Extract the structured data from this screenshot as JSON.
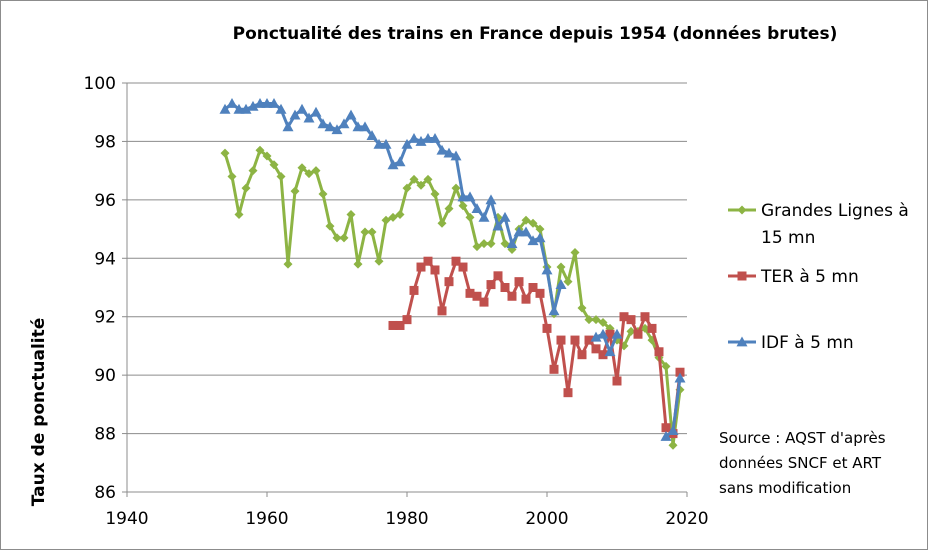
{
  "chart_data": {
    "type": "line",
    "title": "Ponctualité des trains en France depuis 1954 (données brutes)",
    "ylabel": "Taux de ponctualité",
    "xlabel": "",
    "xlim": [
      1940,
      2020
    ],
    "ylim": [
      86,
      100
    ],
    "x_ticks": [
      "1940",
      "1960",
      "1980",
      "2000",
      "2020"
    ],
    "y_ticks": [
      "86",
      "88",
      "90",
      "92",
      "94",
      "96",
      "98",
      "100"
    ],
    "grid": "horizontal",
    "legend_position": "right",
    "series": [
      {
        "name": "Grandes Lignes à 15 mn",
        "name_lines": [
          "Grandes Lignes à",
          "15 mn"
        ],
        "color": "#8DB444",
        "marker": "diamond",
        "x": [
          1954,
          1955,
          1956,
          1957,
          1958,
          1959,
          1960,
          1961,
          1962,
          1963,
          1964,
          1965,
          1966,
          1967,
          1968,
          1969,
          1970,
          1971,
          1972,
          1973,
          1974,
          1975,
          1976,
          1977,
          1978,
          1979,
          1980,
          1981,
          1982,
          1983,
          1984,
          1985,
          1986,
          1987,
          1988,
          1989,
          1990,
          1991,
          1992,
          1993,
          1994,
          1995,
          1996,
          1997,
          1998,
          1999,
          2000,
          2001,
          2002,
          2003,
          2004,
          2005,
          2006,
          2007,
          2008,
          2009,
          2010,
          2011,
          2012,
          2013,
          2014,
          2015,
          2016,
          2017,
          2018,
          2019
        ],
        "y": [
          97.6,
          96.8,
          95.5,
          96.4,
          97.0,
          97.7,
          97.5,
          97.2,
          96.8,
          93.8,
          96.3,
          97.1,
          96.9,
          97.0,
          96.2,
          95.1,
          94.7,
          94.7,
          95.5,
          93.8,
          94.9,
          94.9,
          93.9,
          95.3,
          95.4,
          95.5,
          96.4,
          96.7,
          96.5,
          96.7,
          96.2,
          95.2,
          95.7,
          96.4,
          95.8,
          95.4,
          94.4,
          94.5,
          94.5,
          95.4,
          94.5,
          94.3,
          95.0,
          95.3,
          95.2,
          95.0,
          93.7,
          92.1,
          93.7,
          93.2,
          94.2,
          92.3,
          91.9,
          91.9,
          91.8,
          91.6,
          91.2,
          91.0,
          91.5,
          91.5,
          91.6,
          91.2,
          90.6,
          90.3,
          87.6,
          89.5
        ]
      },
      {
        "name": "TER à 5 mn",
        "name_lines": [
          "TER à 5 mn"
        ],
        "color": "#C0504D",
        "marker": "square",
        "x": [
          1978,
          1979,
          1980,
          1981,
          1982,
          1983,
          1984,
          1985,
          1986,
          1987,
          1988,
          1989,
          1990,
          1991,
          1992,
          1993,
          1994,
          1995,
          1996,
          1997,
          1998,
          1999,
          2000,
          2001,
          2002,
          2003,
          2004,
          2005,
          2006,
          2007,
          2008,
          2009,
          2010,
          2011,
          2012,
          2013,
          2014,
          2015,
          2016,
          2017,
          2018,
          2019
        ],
        "y": [
          91.7,
          91.7,
          91.9,
          92.9,
          93.7,
          93.9,
          93.6,
          92.2,
          93.2,
          93.9,
          93.7,
          92.8,
          92.7,
          92.5,
          93.1,
          93.4,
          93.0,
          92.7,
          93.2,
          92.6,
          93.0,
          92.8,
          91.6,
          90.2,
          91.2,
          89.4,
          91.2,
          90.7,
          91.2,
          90.9,
          90.7,
          91.4,
          89.8,
          92.0,
          91.9,
          91.4,
          92.0,
          91.6,
          90.8,
          88.2,
          88.0,
          90.1
        ]
      },
      {
        "name": "IDF à 5 mn",
        "name_lines": [
          "IDF à 5 mn"
        ],
        "color": "#4F81BD",
        "marker": "triangle",
        "x": [
          1954,
          1955,
          1956,
          1957,
          1958,
          1959,
          1960,
          1961,
          1962,
          1963,
          1964,
          1965,
          1966,
          1967,
          1968,
          1969,
          1970,
          1971,
          1972,
          1973,
          1974,
          1975,
          1976,
          1977,
          1978,
          1979,
          1980,
          1981,
          1982,
          1983,
          1984,
          1985,
          1986,
          1987,
          1988,
          1989,
          1990,
          1991,
          1992,
          1993,
          1994,
          1995,
          1996,
          1997,
          1998,
          1999,
          2000,
          2001,
          2002,
          2003,
          2004,
          2005,
          2006,
          2007,
          2008,
          2009,
          2010,
          2011,
          2012,
          2013,
          2014,
          2015,
          2016,
          2017,
          2018,
          2019
        ],
        "y": [
          99.1,
          99.3,
          99.1,
          99.1,
          99.2,
          99.3,
          99.3,
          99.3,
          99.1,
          98.5,
          98.9,
          99.1,
          98.8,
          99.0,
          98.6,
          98.5,
          98.4,
          98.6,
          98.9,
          98.5,
          98.5,
          98.2,
          97.9,
          97.9,
          97.2,
          97.3,
          97.9,
          98.1,
          98.0,
          98.1,
          98.1,
          97.7,
          97.6,
          97.5,
          96.1,
          96.1,
          95.7,
          95.4,
          96.0,
          95.1,
          95.4,
          94.5,
          94.9,
          94.9,
          94.6,
          94.7,
          93.6,
          92.2,
          93.1,
          null,
          null,
          null,
          null,
          91.3,
          91.4,
          90.8,
          91.4,
          null,
          null,
          null,
          null,
          null,
          null,
          87.9,
          88.1,
          89.9
        ]
      }
    ],
    "annotation_lines": [
      "Source : AQST d'après",
      "données SNCF et ART",
      "sans modification"
    ]
  }
}
